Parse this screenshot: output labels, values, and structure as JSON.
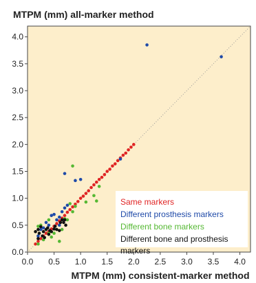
{
  "chart_data": {
    "type": "scatter",
    "title": "MTPM (mm) all-marker method",
    "xlabel": "MTPM (mm) consistent-marker method",
    "ylabel": "",
    "xlim": [
      0.0,
      4.2
    ],
    "ylim": [
      0.0,
      4.2
    ],
    "x_ticks": [
      "0.0",
      "0.5",
      "1.0",
      "1.5",
      "2.0",
      "2.5",
      "3.0",
      "3.5",
      "4.0"
    ],
    "y_ticks": [
      "0.0",
      "0.5",
      "1.0",
      "1.5",
      "2.0",
      "2.5",
      "3.0",
      "3.5",
      "4.0"
    ],
    "grid": false,
    "identity_line": true,
    "plot_background": "#fdeecb",
    "legend_position": "bottom-right",
    "series": [
      {
        "name": "Same markers",
        "color": "#e02424",
        "points": [
          [
            0.15,
            0.15
          ],
          [
            0.2,
            0.2
          ],
          [
            0.25,
            0.25
          ],
          [
            0.3,
            0.3
          ],
          [
            0.35,
            0.35
          ],
          [
            0.4,
            0.38
          ],
          [
            0.45,
            0.43
          ],
          [
            0.5,
            0.48
          ],
          [
            0.55,
            0.53
          ],
          [
            0.6,
            0.58
          ],
          [
            0.65,
            0.63
          ],
          [
            0.7,
            0.68
          ],
          [
            0.75,
            0.74
          ],
          [
            0.8,
            0.79
          ],
          [
            0.85,
            0.84
          ],
          [
            0.9,
            0.89
          ],
          [
            0.95,
            0.94
          ],
          [
            1.0,
            1.0
          ],
          [
            1.05,
            1.04
          ],
          [
            1.1,
            1.09
          ],
          [
            1.15,
            1.14
          ],
          [
            1.2,
            1.2
          ],
          [
            1.25,
            1.25
          ],
          [
            1.3,
            1.3
          ],
          [
            1.35,
            1.35
          ],
          [
            1.4,
            1.39
          ],
          [
            1.45,
            1.44
          ],
          [
            1.5,
            1.5
          ],
          [
            1.55,
            1.54
          ],
          [
            1.6,
            1.6
          ],
          [
            1.65,
            1.64
          ],
          [
            1.7,
            1.7
          ],
          [
            1.75,
            1.75
          ],
          [
            1.8,
            1.8
          ],
          [
            1.85,
            1.84
          ],
          [
            1.9,
            1.9
          ],
          [
            1.95,
            1.95
          ],
          [
            2.0,
            2.0
          ]
        ]
      },
      {
        "name": "Different prosthesis markers",
        "color": "#1f4aa8",
        "points": [
          [
            2.25,
            3.85
          ],
          [
            3.65,
            3.63
          ],
          [
            0.7,
            1.46
          ],
          [
            0.9,
            1.33
          ],
          [
            1.0,
            1.35
          ],
          [
            1.75,
            1.73
          ],
          [
            0.5,
            0.7
          ],
          [
            0.45,
            0.68
          ],
          [
            0.6,
            0.65
          ],
          [
            0.35,
            0.55
          ],
          [
            0.3,
            0.45
          ],
          [
            0.25,
            0.42
          ],
          [
            0.75,
            0.87
          ],
          [
            0.7,
            0.82
          ],
          [
            0.65,
            0.75
          ],
          [
            0.55,
            0.6
          ],
          [
            0.4,
            0.5
          ],
          [
            0.2,
            0.3
          ],
          [
            0.6,
            0.5
          ]
        ]
      },
      {
        "name": "Different bone markers",
        "color": "#55b833",
        "points": [
          [
            0.85,
            1.6
          ],
          [
            1.35,
            1.22
          ],
          [
            1.25,
            1.05
          ],
          [
            0.9,
            0.85
          ],
          [
            0.8,
            0.9
          ],
          [
            0.75,
            0.6
          ],
          [
            0.65,
            0.42
          ],
          [
            0.6,
            0.2
          ],
          [
            0.45,
            0.28
          ],
          [
            0.3,
            0.23
          ],
          [
            0.2,
            0.48
          ],
          [
            0.25,
            0.5
          ],
          [
            0.4,
            0.35
          ],
          [
            0.5,
            0.35
          ],
          [
            1.1,
            0.93
          ],
          [
            1.3,
            0.95
          ],
          [
            0.85,
            0.75
          ],
          [
            0.7,
            0.62
          ],
          [
            0.2,
            0.15
          ],
          [
            0.4,
            0.6
          ]
        ]
      },
      {
        "name": "Different bone and prosthesis markers",
        "color": "#111111",
        "points": [
          [
            0.15,
            0.38
          ],
          [
            0.2,
            0.42
          ],
          [
            0.22,
            0.35
          ],
          [
            0.25,
            0.47
          ],
          [
            0.28,
            0.3
          ],
          [
            0.3,
            0.38
          ],
          [
            0.32,
            0.27
          ],
          [
            0.35,
            0.42
          ],
          [
            0.38,
            0.45
          ],
          [
            0.4,
            0.33
          ],
          [
            0.42,
            0.4
          ],
          [
            0.45,
            0.38
          ],
          [
            0.5,
            0.43
          ],
          [
            0.52,
            0.48
          ],
          [
            0.55,
            0.42
          ],
          [
            0.6,
            0.4
          ],
          [
            0.62,
            0.55
          ],
          [
            0.65,
            0.6
          ],
          [
            0.68,
            0.55
          ],
          [
            0.7,
            0.6
          ],
          [
            0.2,
            0.25
          ],
          [
            0.72,
            0.5
          ]
        ]
      }
    ]
  }
}
